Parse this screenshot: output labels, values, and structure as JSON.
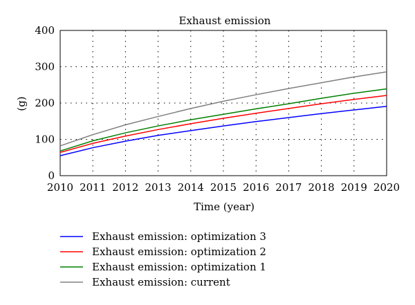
{
  "chart_data": {
    "type": "line",
    "title": "Exhaust emission",
    "xlabel": "Time (year)",
    "ylabel": "(g)",
    "xlim": [
      2010,
      2020
    ],
    "ylim": [
      0,
      400
    ],
    "x": [
      2010,
      2011,
      2012,
      2013,
      2014,
      2015,
      2016,
      2017,
      2018,
      2019,
      2020
    ],
    "x_ticks": [
      "2010",
      "2011",
      "2012",
      "2013",
      "2014",
      "2015",
      "2016",
      "2017",
      "2018",
      "2019",
      "2020"
    ],
    "y_ticks": [
      "0",
      "100",
      "200",
      "300",
      "400"
    ],
    "grid": "dotted",
    "legend_position": "bottom",
    "series": [
      {
        "name": "Exhaust emission: optimization 3",
        "color": "#0000ff",
        "values": [
          55,
          77,
          95,
          111,
          124,
          137,
          149,
          160,
          171,
          181,
          191
        ]
      },
      {
        "name": "Exhaust emission: optimization 2",
        "color": "#ff0000",
        "values": [
          64,
          89,
          109,
          127,
          143,
          158,
          172,
          185,
          198,
          210,
          221
        ]
      },
      {
        "name": "Exhaust emission: optimization 1",
        "color": "#008000",
        "values": [
          68,
          96,
          118,
          137,
          154,
          169,
          184,
          198,
          213,
          227,
          239
        ]
      },
      {
        "name": "Exhaust emission: current",
        "color": "#808080",
        "values": [
          82,
          113,
          140,
          163,
          185,
          205,
          223,
          240,
          256,
          272,
          286
        ]
      }
    ]
  }
}
